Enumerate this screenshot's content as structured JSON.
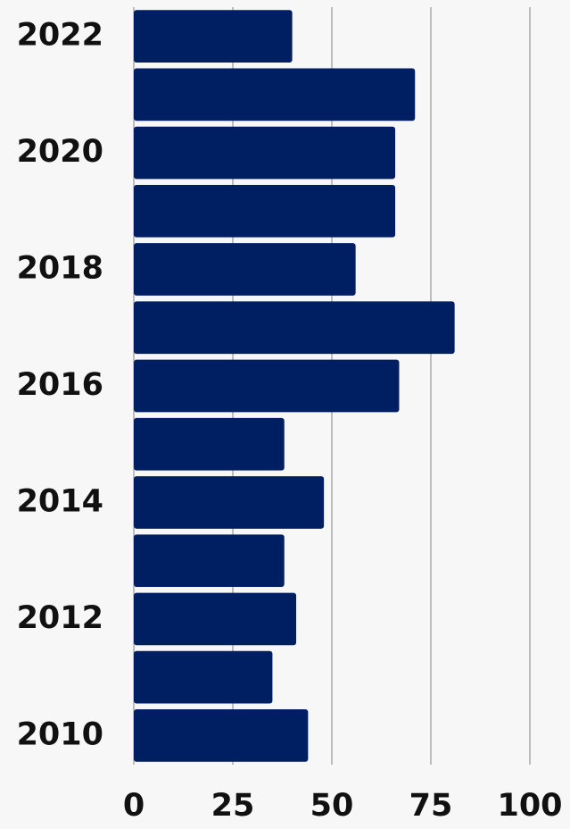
{
  "chart_data": {
    "type": "barh",
    "categories": [
      "2022",
      null,
      "2020",
      null,
      "2018",
      null,
      "2016",
      null,
      "2014",
      null,
      "2012",
      null,
      "2010"
    ],
    "values": [
      40,
      71,
      66,
      66,
      56,
      81,
      67,
      38,
      48,
      38,
      41,
      35,
      44
    ],
    "color": "#001f63",
    "xlim": [
      0,
      100
    ],
    "xticks": [
      0,
      25,
      50,
      75,
      100
    ],
    "grid": true
  }
}
